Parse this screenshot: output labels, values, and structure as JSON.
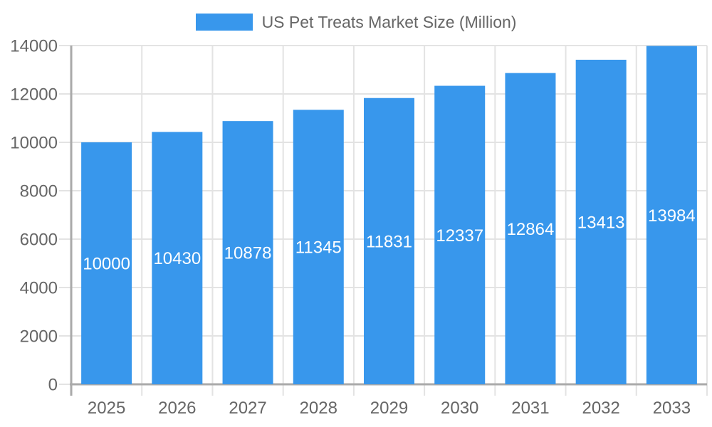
{
  "chart_data": {
    "type": "bar",
    "title": "US Pet Treats Market Size (Million)",
    "legend_label": "US Pet Treats Market Size (Million)",
    "categories": [
      "2025",
      "2026",
      "2027",
      "2028",
      "2029",
      "2030",
      "2031",
      "2032",
      "2033"
    ],
    "values": [
      10000,
      10430,
      10878,
      11345,
      11831,
      12337,
      12864,
      13413,
      13984
    ],
    "value_labels_shown": [
      "10000",
      "10430",
      "10878",
      "11345",
      "11831",
      "12337",
      "12864",
      "13413",
      "13984"
    ],
    "xlabel": "",
    "ylabel": "",
    "ylim": [
      0,
      14000
    ],
    "yticks": [
      0,
      2000,
      4000,
      6000,
      8000,
      10000,
      12000,
      14000
    ],
    "grid": true,
    "legend_position": "top",
    "value_label_position": "inside-center",
    "colors": {
      "bar": "#3897ec",
      "grid": "#e3e3e3",
      "axis": "#aaaaaa",
      "text": "#666666",
      "value_text": "#ffffff",
      "background": "#ffffff"
    }
  }
}
